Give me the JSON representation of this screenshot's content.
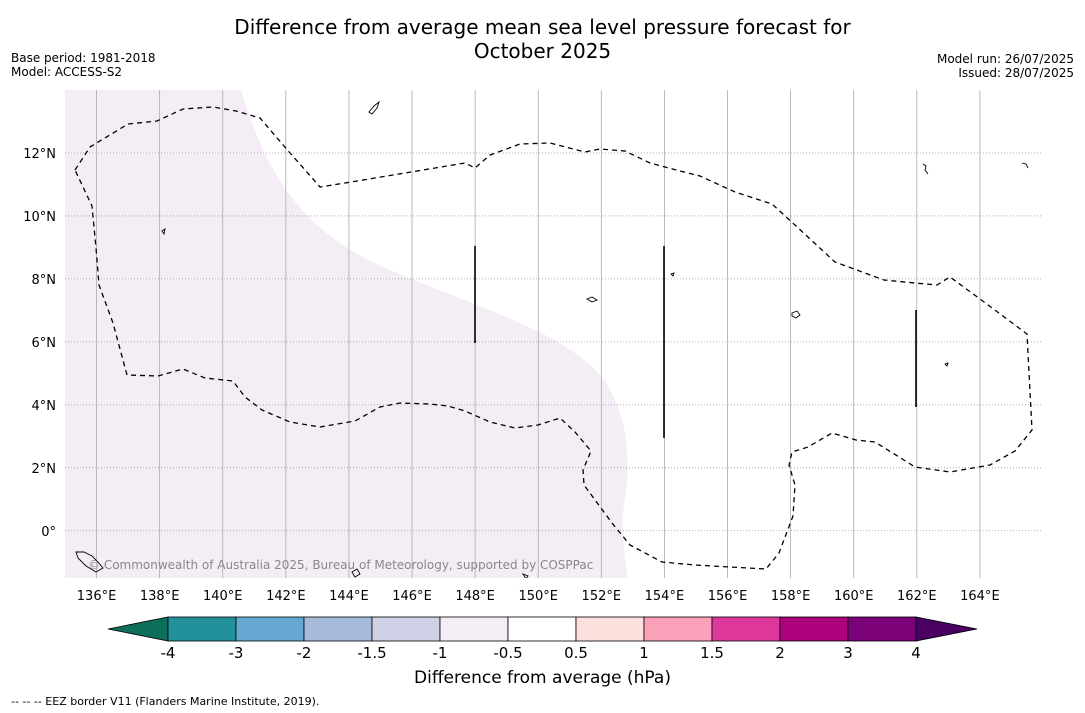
{
  "title_line1": "Difference from average mean sea level pressure forecast for",
  "title_line2": "October 2025",
  "meta_left": [
    "Base period: 1981-2018",
    "Model: ACCESS-S2"
  ],
  "meta_right": [
    "Model run: 26/07/2025",
    "Issued: 28/07/2025"
  ],
  "copyright": "© Commonwealth of Australia 2025, Bureau of Meteorology, supported by COSPPac",
  "colorbar": {
    "title": "Difference from average (hPa)",
    "labels": [
      "-4",
      "-3",
      "-2",
      "-1.5",
      "-1",
      "-0.5",
      "0.5",
      "1",
      "1.5",
      "2",
      "3",
      "4"
    ],
    "colors": [
      "#239199",
      "#67a8d2",
      "#a7bcdb",
      "#d0d0e6",
      "#f4edf6",
      "#ffffff",
      "#fde0dd",
      "#faa0b8",
      "#df389c",
      "#ae017e",
      "#7a0177"
    ],
    "under_color": "#0d6e5a",
    "over_color": "#4a0060"
  },
  "footnote": "--  --  -- EEZ border V11 (Flanders Marine Institute, 2019).",
  "map": {
    "lon_min": 135,
    "lon_max": 166,
    "lat_min": -1.5,
    "lat_max": 14,
    "lon_ticks": [
      "136°E",
      "138°E",
      "140°E",
      "142°E",
      "144°E",
      "146°E",
      "148°E",
      "150°E",
      "152°E",
      "154°E",
      "156°E",
      "158°E",
      "160°E",
      "162°E",
      "164°E"
    ],
    "lat_ticks": [
      "0°",
      "2°N",
      "4°N",
      "6°N",
      "8°N",
      "10°N",
      "12°N"
    ],
    "anomaly_region_color": "#f4edf6",
    "anomaly_region_value": "-1 to -0.5"
  }
}
